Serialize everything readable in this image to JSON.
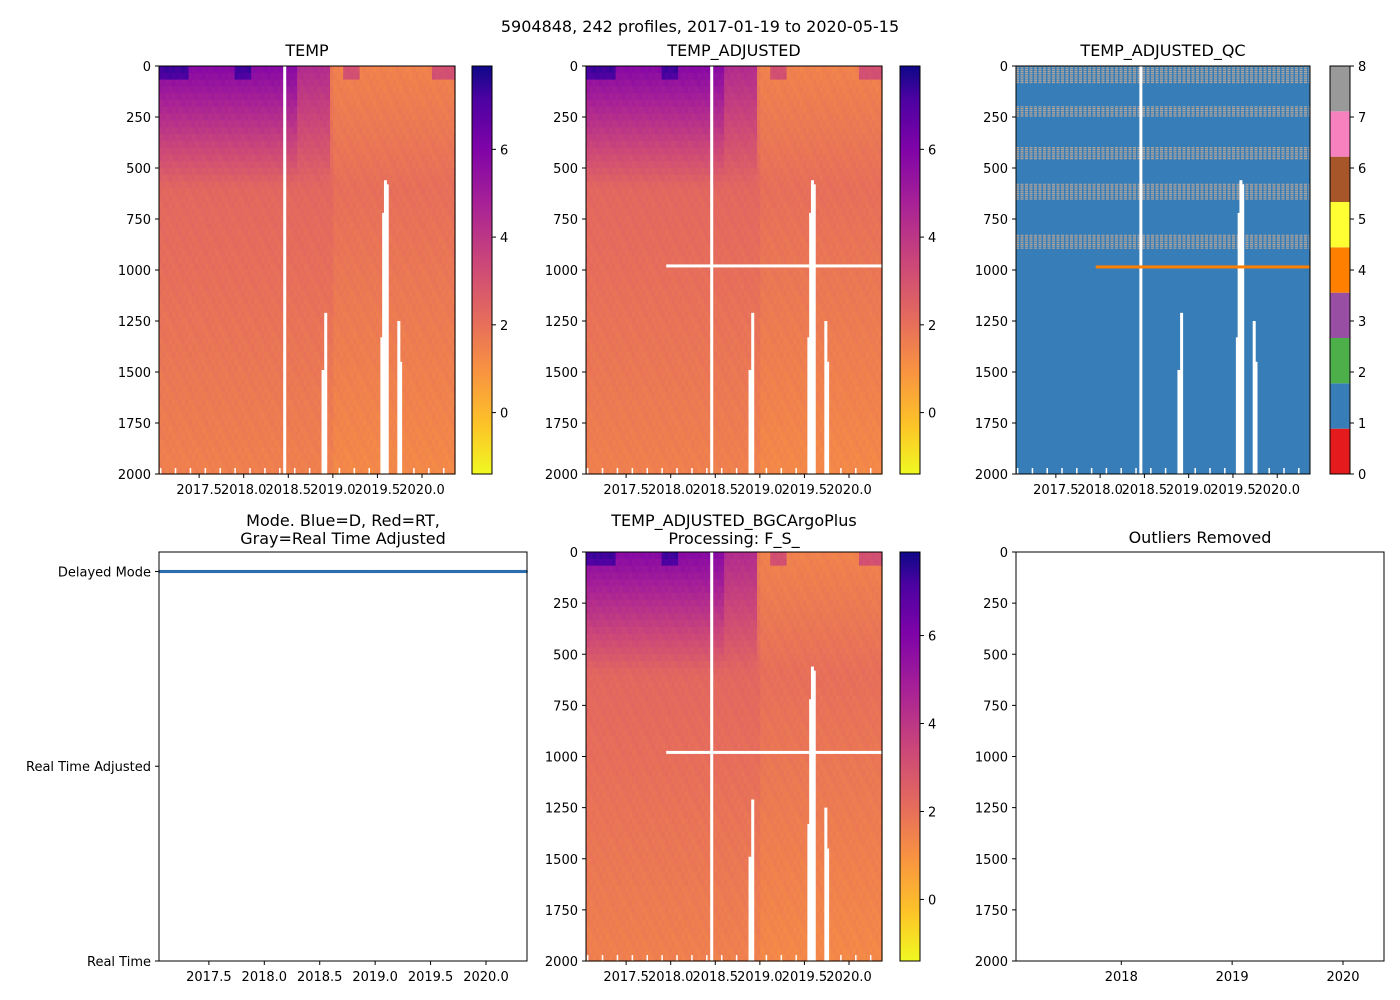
{
  "figure": {
    "suptitle": "5904848, 242 profiles, 2017-01-19 to 2020-05-15"
  },
  "colors": {
    "mode_line": "#2c6fae",
    "qc_background": "#377eb8",
    "qc_flag3": "#b0a39a",
    "qc_flag4": "#ff7f00"
  },
  "chart_data": [
    {
      "id": "temp",
      "type": "heatmap",
      "title": "TEMP",
      "variable": "temperature",
      "x_ticks": [
        "2017.5",
        "2018.0",
        "2018.5",
        "2019.0",
        "2019.5",
        "2020.0"
      ],
      "x_tick_values": [
        2017.5,
        2018.0,
        2018.5,
        2019.0,
        2019.5,
        2020.0
      ],
      "xlim": [
        2017.05,
        2020.37
      ],
      "y_ticks": [
        "0",
        "250",
        "500",
        "750",
        "1000",
        "1250",
        "1500",
        "1750",
        "2000"
      ],
      "y_tick_values": [
        0,
        250,
        500,
        750,
        1000,
        1250,
        1500,
        1750,
        2000
      ],
      "ylim": [
        2000,
        0
      ],
      "colorbar": {
        "colormap": "plasma_r",
        "range": [
          -1.4,
          7.9
        ],
        "ticks": [
          "0",
          "2",
          "4",
          "6"
        ],
        "tick_values": [
          0,
          2,
          4,
          6
        ]
      },
      "gaps": [
        {
          "x": 2018.46,
          "from": 0,
          "to": 2000
        },
        {
          "x": 2018.92,
          "from": 1210,
          "to": 2000
        },
        {
          "x": 2018.89,
          "from": 1490,
          "to": 2000
        },
        {
          "x": 2019.55,
          "from": 1330,
          "to": 2000
        },
        {
          "x": 2019.57,
          "from": 720,
          "to": 2000
        },
        {
          "x": 2019.59,
          "from": 560,
          "to": 2000
        },
        {
          "x": 2019.61,
          "from": 580,
          "to": 2000
        },
        {
          "x": 2019.74,
          "from": 1250,
          "to": 2000
        },
        {
          "x": 2019.76,
          "from": 1450,
          "to": 2000
        }
      ],
      "adjusted_line": null
    },
    {
      "id": "temp_adjusted",
      "type": "heatmap",
      "title": "TEMP_ADJUSTED",
      "variable": "temperature",
      "x_ticks": [
        "2017.5",
        "2018.0",
        "2018.5",
        "2019.0",
        "2019.5",
        "2020.0"
      ],
      "x_tick_values": [
        2017.5,
        2018.0,
        2018.5,
        2019.0,
        2019.5,
        2020.0
      ],
      "xlim": [
        2017.05,
        2020.37
      ],
      "y_ticks": [
        "0",
        "250",
        "500",
        "750",
        "1000",
        "1250",
        "1500",
        "1750",
        "2000"
      ],
      "y_tick_values": [
        0,
        250,
        500,
        750,
        1000,
        1250,
        1500,
        1750,
        2000
      ],
      "ylim": [
        2000,
        0
      ],
      "colorbar": {
        "colormap": "plasma_r",
        "range": [
          -1.4,
          7.9
        ],
        "ticks": [
          "0",
          "2",
          "4",
          "6"
        ],
        "tick_values": [
          0,
          2,
          4,
          6
        ]
      },
      "gaps": [
        {
          "x": 2018.46,
          "from": 0,
          "to": 2000
        },
        {
          "x": 2018.92,
          "from": 1210,
          "to": 2000
        },
        {
          "x": 2018.89,
          "from": 1490,
          "to": 2000
        },
        {
          "x": 2019.55,
          "from": 1330,
          "to": 2000
        },
        {
          "x": 2019.57,
          "from": 720,
          "to": 2000
        },
        {
          "x": 2019.59,
          "from": 560,
          "to": 2000
        },
        {
          "x": 2019.61,
          "from": 580,
          "to": 2000
        },
        {
          "x": 2019.74,
          "from": 1250,
          "to": 2000
        },
        {
          "x": 2019.76,
          "from": 1450,
          "to": 2000
        }
      ],
      "adjusted_line": {
        "depth": 980,
        "x_from": 2017.95,
        "x_to": 2020.37
      }
    },
    {
      "id": "temp_adjusted_qc",
      "type": "heatmap",
      "title": "TEMP_ADJUSTED_QC",
      "variable": "qc_flag",
      "x_ticks": [
        "2017.5",
        "2018.0",
        "2018.5",
        "2019.0",
        "2019.5",
        "2020.0"
      ],
      "x_tick_values": [
        2017.5,
        2018.0,
        2018.5,
        2019.0,
        2019.5,
        2020.0
      ],
      "xlim": [
        2017.05,
        2020.37
      ],
      "y_ticks": [
        "0",
        "250",
        "500",
        "750",
        "1000",
        "1250",
        "1500",
        "1750",
        "2000"
      ],
      "y_tick_values": [
        0,
        250,
        500,
        750,
        1000,
        1250,
        1500,
        1750,
        2000
      ],
      "ylim": [
        2000,
        0
      ],
      "colorbar": {
        "colormap": "Set1",
        "range": [
          0,
          8
        ],
        "ticks": [
          "0",
          "1",
          "2",
          "3",
          "4",
          "5",
          "6",
          "7",
          "8"
        ],
        "tick_values": [
          0,
          1,
          2,
          3,
          4,
          5,
          6,
          7,
          8
        ],
        "categories": [
          {
            "flag": 0,
            "color": "#e41a1c"
          },
          {
            "flag": 1,
            "color": "#377eb8"
          },
          {
            "flag": 2,
            "color": "#4daf4a"
          },
          {
            "flag": 3,
            "color": "#984ea3"
          },
          {
            "flag": 4,
            "color": "#ff7f00"
          },
          {
            "flag": 5,
            "color": "#ffff33"
          },
          {
            "flag": 6,
            "color": "#a65628"
          },
          {
            "flag": 7,
            "color": "#f781bf"
          },
          {
            "flag": 8,
            "color": "#999999"
          }
        ]
      },
      "qc_bands": [
        {
          "from": 0,
          "to": 90
        },
        {
          "from": 200,
          "to": 250
        },
        {
          "from": 400,
          "to": 460
        },
        {
          "from": 580,
          "to": 660
        },
        {
          "from": 830,
          "to": 900
        }
      ],
      "gaps": [
        {
          "x": 2018.46,
          "from": 0,
          "to": 2000
        },
        {
          "x": 2018.92,
          "from": 1210,
          "to": 2000
        },
        {
          "x": 2018.89,
          "from": 1490,
          "to": 2000
        },
        {
          "x": 2019.55,
          "from": 1330,
          "to": 2000
        },
        {
          "x": 2019.57,
          "from": 720,
          "to": 2000
        },
        {
          "x": 2019.59,
          "from": 560,
          "to": 2000
        },
        {
          "x": 2019.61,
          "from": 580,
          "to": 2000
        },
        {
          "x": 2019.74,
          "from": 1250,
          "to": 2000
        },
        {
          "x": 2019.76,
          "from": 1450,
          "to": 2000
        }
      ],
      "adjusted_line": {
        "depth": 985,
        "x_from": 2017.95,
        "x_to": 2020.37
      }
    },
    {
      "id": "mode",
      "type": "scatter",
      "title_lines": [
        "Mode. Blue=D, Red=RT,",
        "Gray=Real Time Adjusted"
      ],
      "x_ticks": [
        "2017.5",
        "2018.0",
        "2018.5",
        "2019.0",
        "2019.5",
        "2020.0"
      ],
      "x_tick_values": [
        2017.5,
        2018.0,
        2018.5,
        2019.0,
        2019.5,
        2020.0
      ],
      "xlim": [
        2017.05,
        2020.37
      ],
      "y_categories": [
        "Delayed Mode",
        "Real Time Adjusted",
        "Real Time"
      ],
      "y_category_values": [
        1.0,
        0.5,
        0.0
      ],
      "ylim": [
        0,
        1.05
      ],
      "series": [
        {
          "name": "Delayed Mode",
          "mode": "D",
          "value": 1.0,
          "x_from": 2017.05,
          "x_to": 2020.37,
          "profiles": 242
        }
      ]
    },
    {
      "id": "temp_adjusted_bgc",
      "type": "heatmap",
      "title_lines": [
        "TEMP_ADJUSTED_BGCArgoPlus",
        "Processing: F_S_"
      ],
      "variable": "temperature",
      "x_ticks": [
        "2017.5",
        "2018.0",
        "2018.5",
        "2019.0",
        "2019.5",
        "2020.0"
      ],
      "x_tick_values": [
        2017.5,
        2018.0,
        2018.5,
        2019.0,
        2019.5,
        2020.0
      ],
      "xlim": [
        2017.05,
        2020.37
      ],
      "y_ticks": [
        "0",
        "250",
        "500",
        "750",
        "1000",
        "1250",
        "1500",
        "1750",
        "2000"
      ],
      "y_tick_values": [
        0,
        250,
        500,
        750,
        1000,
        1250,
        1500,
        1750,
        2000
      ],
      "ylim": [
        2000,
        0
      ],
      "colorbar": {
        "colormap": "plasma_r",
        "range": [
          -1.4,
          7.9
        ],
        "ticks": [
          "0",
          "2",
          "4",
          "6"
        ],
        "tick_values": [
          0,
          2,
          4,
          6
        ]
      },
      "gaps": [
        {
          "x": 2018.46,
          "from": 0,
          "to": 2000
        },
        {
          "x": 2018.92,
          "from": 1210,
          "to": 2000
        },
        {
          "x": 2018.89,
          "from": 1490,
          "to": 2000
        },
        {
          "x": 2019.55,
          "from": 1330,
          "to": 2000
        },
        {
          "x": 2019.57,
          "from": 720,
          "to": 2000
        },
        {
          "x": 2019.59,
          "from": 560,
          "to": 2000
        },
        {
          "x": 2019.61,
          "from": 580,
          "to": 2000
        },
        {
          "x": 2019.74,
          "from": 1250,
          "to": 2000
        },
        {
          "x": 2019.76,
          "from": 1450,
          "to": 2000
        }
      ],
      "adjusted_line": {
        "depth": 980,
        "x_from": 2017.95,
        "x_to": 2020.37
      }
    },
    {
      "id": "outliers",
      "type": "scatter",
      "title": "Outliers Removed",
      "x_ticks": [
        "2018",
        "2019",
        "2020"
      ],
      "x_tick_values": [
        2018,
        2019,
        2020
      ],
      "xlim": [
        2017.05,
        2020.37
      ],
      "y_ticks": [
        "0",
        "250",
        "500",
        "750",
        "1000",
        "1250",
        "1500",
        "1750",
        "2000"
      ],
      "y_tick_values": [
        0,
        250,
        500,
        750,
        1000,
        1250,
        1500,
        1750,
        2000
      ],
      "ylim": [
        2000,
        0
      ],
      "series": []
    }
  ]
}
